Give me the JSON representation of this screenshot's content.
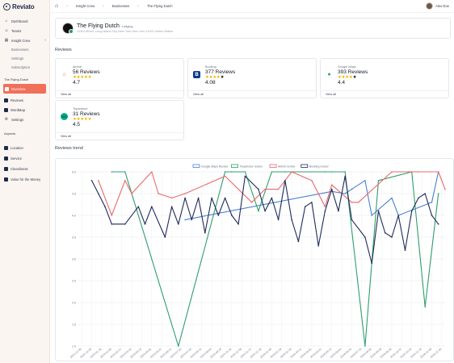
{
  "app": {
    "logo_text": "Reviato"
  },
  "sidebar": {
    "top_items": [
      {
        "label": "Dashboard",
        "icon": "home-icon"
      },
      {
        "label": "Teams",
        "icon": "users-icon"
      },
      {
        "label": "Insight Crew",
        "icon": "building-icon"
      }
    ],
    "sub_items": [
      {
        "label": "Businesses"
      },
      {
        "label": "Settings"
      },
      {
        "label": "Subscription"
      }
    ],
    "business_section_label": "The Flying Dutch",
    "business_items": [
      {
        "label": "Overview",
        "icon": "O",
        "active": true
      },
      {
        "label": "Reviews",
        "icon": "R",
        "active": false
      },
      {
        "label": "WordMap",
        "icon": "W",
        "active": false
      },
      {
        "label": "Settings",
        "icon": "gear-icon",
        "active": false
      }
    ],
    "aspects_label": "Aspects",
    "aspects": [
      {
        "label": "Location",
        "icon": "L"
      },
      {
        "label": "Service",
        "icon": "S"
      },
      {
        "label": "Cleanliness",
        "icon": "C"
      },
      {
        "label": "Value for the Money",
        "icon": "V"
      }
    ]
  },
  "topbar": {
    "breadcrumb": [
      "Insight Crew",
      "Businesses",
      "The Flying Dutch"
    ],
    "user_name": "Alex Doe"
  },
  "business": {
    "name": "The Flying Dutch",
    "category": "Lodging",
    "address": "123rd Street, Long Island City New York New York 11101 United States"
  },
  "reviews_heading": "Reviews",
  "review_cards": [
    {
      "source": "Airbnb",
      "count": "56 Reviews",
      "score": "4.7",
      "stars_full": 5,
      "logo_color": "#ff5a5f",
      "logo_glyph": "⌂",
      "view_all": "View all"
    },
    {
      "source": "Booking",
      "count": "377 Reviews",
      "score": "4.08",
      "stars_full": 4,
      "logo_color": "#0c3b8f",
      "logo_glyph": "B",
      "view_all": "View all"
    },
    {
      "source": "Google Maps",
      "count": "393 Reviews",
      "score": "4.4",
      "stars_full": 4,
      "logo_color": "#34a853",
      "logo_glyph": "●",
      "view_all": "View all"
    },
    {
      "source": "Tripadvisor",
      "count": "31 Reviews",
      "score": "4.5",
      "stars_full": 5,
      "logo_color": "#00af87",
      "logo_glyph": "OO",
      "view_all": "View all"
    }
  ],
  "trend_heading": "Reviews trend",
  "chart_data": {
    "type": "line",
    "ylim": [
      1,
      5
    ],
    "yticks": [
      "5.0",
      "4.5",
      "4.0",
      "3.5",
      "3.0",
      "2.5",
      "2.0",
      "1.5",
      "1.0"
    ],
    "x": [
      "2022-11-28",
      "2022-12-12",
      "2022-12-26",
      "2023-01-09",
      "2023-01-23",
      "2023-02-06",
      "2023-02-20",
      "2023-03-06",
      "2023-03-20",
      "2023-04-03",
      "2023-04-17",
      "2023-05-01",
      "2023-05-15",
      "2023-05-29",
      "2023-06-12",
      "2023-06-26",
      "2023-07-10",
      "2023-07-24",
      "2023-08-07",
      "2023-08-21",
      "2023-09-04",
      "2023-09-18",
      "2023-10-02",
      "2023-10-16",
      "2023-10-30",
      "2023-11-13",
      "2023-11-27",
      "2023-12-11",
      "2023-12-25",
      "2024-01-08",
      "2024-01-22",
      "2024-02-05",
      "2024-02-19",
      "2024-03-04",
      "2024-03-18",
      "2024-04-01",
      "2024-04-15",
      "2024-04-29",
      "2024-05-13",
      "2024-05-27",
      "2024-06-10",
      "2024-06-24",
      "2024-07-08",
      "2024-07-22",
      "2024-08-05",
      "2024-08-19",
      "2024-09-02",
      "2024-09-16",
      "2024-09-30",
      "2024-10-14",
      "2024-10-28",
      "2024-11-11",
      "2024-11-25",
      "2024-12-09",
      "2024-12-23",
      "2025-01-06"
    ],
    "xticks": [
      "2022-12-05",
      "2022-12-26",
      "2023-01-16",
      "2023-02-06",
      "2023-02-27",
      "2023-03-20",
      "2023-04-10",
      "2023-05-01",
      "2023-05-22",
      "2023-06-12",
      "2023-07-03",
      "2023-07-24",
      "2023-08-14",
      "2023-09-04",
      "2023-09-25",
      "2023-10-16",
      "2023-11-06",
      "2023-11-27",
      "2023-12-18",
      "2024-01-08",
      "2024-01-29",
      "2024-02-19",
      "2024-03-11",
      "2024-04-01",
      "2024-04-22",
      "2024-05-13",
      "2024-06-03",
      "2024-06-24",
      "2024-07-15",
      "2024-08-05",
      "2024-08-26",
      "2024-09-16",
      "2024-10-07",
      "2024-10-28",
      "2024-11-18",
      "2024-12-09",
      "2024-12-30"
    ],
    "legend": [
      "Google Maps Review",
      "Tripadvisor review",
      "Airbnb review",
      "Booking review"
    ],
    "series": [
      {
        "name": "Google Maps Review",
        "color": "#4a7fd4",
        "values": [
          null,
          null,
          null,
          null,
          null,
          null,
          null,
          null,
          null,
          null,
          null,
          null,
          null,
          null,
          null,
          null,
          3.9,
          null,
          null,
          null,
          null,
          null,
          null,
          null,
          null,
          null,
          null,
          null,
          null,
          null,
          null,
          null,
          null,
          null,
          null,
          null,
          null,
          null,
          4.55,
          null,
          4.5,
          4.6,
          null,
          4.8,
          4.0,
          null,
          null,
          4.4,
          4.0,
          null,
          null,
          null,
          null,
          4.3,
          5.0,
          null
        ]
      },
      {
        "name": "Tripadvisor review",
        "color": "#2e9e6e",
        "values": [
          null,
          null,
          null,
          null,
          null,
          5.0,
          null,
          5.0,
          null,
          null,
          null,
          null,
          null,
          null,
          null,
          1.0,
          null,
          null,
          null,
          null,
          null,
          null,
          5.0,
          5.0,
          null,
          5.0,
          null,
          4.1,
          null,
          5.0,
          null,
          5.0,
          null,
          null,
          null,
          null,
          null,
          5.0,
          5.0,
          null,
          5.0,
          null,
          null,
          1.0,
          null,
          4.8,
          null,
          null,
          null,
          null,
          5.0,
          null,
          1.9,
          null,
          4.5,
          null
        ]
      },
      {
        "name": "Airbnb review",
        "color": "#e86a6a",
        "values": [
          null,
          null,
          null,
          4.8,
          null,
          4.0,
          null,
          4.8,
          4.5,
          null,
          null,
          5.0,
          4.5,
          null,
          4.4,
          null,
          4.5,
          null,
          null,
          null,
          null,
          null,
          4.9,
          null,
          null,
          null,
          4.3,
          null,
          4.6,
          null,
          4.6,
          null,
          5.0,
          null,
          null,
          4.8,
          null,
          4.2,
          4.7,
          null,
          null,
          4.3,
          4.3,
          null,
          null,
          null,
          null,
          5.0,
          null,
          null,
          null,
          5.0,
          null,
          null,
          5.0,
          4.6
        ]
      },
      {
        "name": "Booking review",
        "color": "#1e2a5a",
        "values": [
          null,
          null,
          4.8,
          4.5,
          4.2,
          3.8,
          null,
          3.8,
          null,
          4.2,
          3.8,
          4.2,
          null,
          3.5,
          4.2,
          3.8,
          4.4,
          3.9,
          4.4,
          3.6,
          4.4,
          4.0,
          4.4,
          4.0,
          3.8,
          4.9,
          null,
          4.6,
          4.1,
          4.4,
          3.9,
          4.8,
          3.9,
          3.4,
          4.2,
          4.3,
          3.3,
          4.1,
          4.6,
          4.1,
          4.9,
          3.9,
          null,
          3.5,
          2.9,
          4.1,
          3.6,
          3.5,
          4.0,
          3.2,
          4.1,
          4.4,
          4.5,
          4.0,
          3.8,
          null
        ]
      }
    ]
  }
}
